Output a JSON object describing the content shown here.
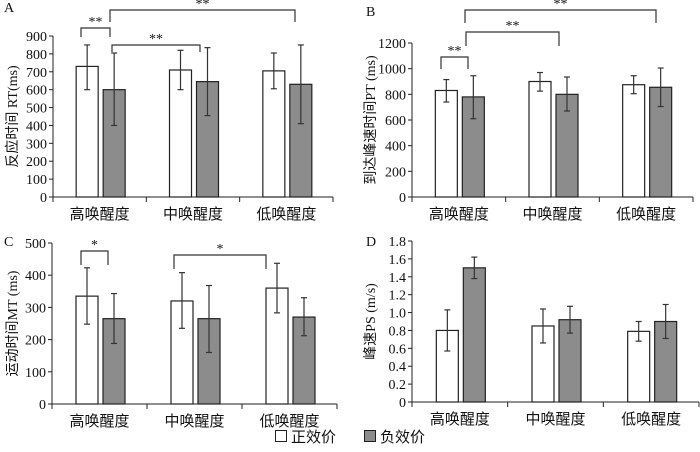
{
  "chart_data": [
    {
      "type": "bar",
      "panel_label": "A",
      "ylabel": "反应时间 RT(ms)",
      "xlabel": "",
      "ylim": [
        0,
        900
      ],
      "yticks": [
        0,
        100,
        200,
        300,
        400,
        500,
        600,
        700,
        800,
        900
      ],
      "ytick_labels": [
        "0",
        "100",
        "200",
        "300",
        "400",
        "500",
        "600",
        "700",
        "800",
        "900"
      ],
      "categories": [
        "高唤醒度",
        "中唤醒度",
        "低唤醒度"
      ],
      "series": [
        {
          "name": "正效价",
          "values": [
            730,
            710,
            705
          ],
          "err_low": [
            600,
            600,
            605
          ],
          "err_high": [
            850,
            820,
            805
          ]
        },
        {
          "name": "负效价",
          "values": [
            600,
            645,
            630
          ],
          "err_low": [
            400,
            455,
            410
          ],
          "err_high": [
            805,
            835,
            850
          ]
        }
      ],
      "annotations": [
        {
          "text": "**",
          "from": [
            0,
            0
          ],
          "to": [
            0,
            1
          ]
        },
        {
          "text": "**",
          "from": [
            0,
            1
          ],
          "to": [
            1,
            0
          ]
        },
        {
          "text": "**",
          "from": [
            0,
            1
          ],
          "to": [
            2,
            0
          ]
        }
      ],
      "grid": false
    },
    {
      "type": "bar",
      "panel_label": "B",
      "ylabel": "到达峰速时间PT (ms)",
      "xlabel": "",
      "ylim": [
        0,
        1200
      ],
      "yticks": [
        0,
        200,
        400,
        600,
        800,
        1000,
        1200
      ],
      "ytick_labels": [
        "0",
        "200",
        "400",
        "600",
        "800",
        "1000",
        "1200"
      ],
      "categories": [
        "高唤醒度",
        "中唤醒度",
        "低唤醒度"
      ],
      "series": [
        {
          "name": "正效价",
          "values": [
            830,
            900,
            875
          ],
          "err_low": [
            740,
            825,
            805
          ],
          "err_high": [
            915,
            970,
            945
          ]
        },
        {
          "name": "负效价",
          "values": [
            780,
            800,
            855
          ],
          "err_low": [
            610,
            670,
            705
          ],
          "err_high": [
            945,
            935,
            1005
          ]
        }
      ],
      "annotations": [
        {
          "text": "**",
          "from": [
            0,
            0
          ],
          "to": [
            0,
            1
          ]
        },
        {
          "text": "**",
          "from": [
            0,
            1
          ],
          "to": [
            1,
            0
          ]
        },
        {
          "text": "**",
          "from": [
            0,
            1
          ],
          "to": [
            2,
            0
          ]
        }
      ],
      "grid": false
    },
    {
      "type": "bar",
      "panel_label": "C",
      "ylabel": "运动时间MT (ms)",
      "xlabel": "",
      "ylim": [
        0,
        500
      ],
      "yticks": [
        0,
        100,
        200,
        300,
        400,
        500
      ],
      "ytick_labels": [
        "0",
        "100",
        "200",
        "300",
        "400",
        "500"
      ],
      "categories": [
        "高唤醒度",
        "中唤醒度",
        "低唤醒度"
      ],
      "series": [
        {
          "name": "正效价",
          "values": [
            335,
            320,
            360
          ],
          "err_low": [
            248,
            235,
            283
          ],
          "err_high": [
            423,
            408,
            437
          ]
        },
        {
          "name": "负效价",
          "values": [
            265,
            265,
            270
          ],
          "err_low": [
            188,
            160,
            212
          ],
          "err_high": [
            343,
            368,
            330
          ]
        }
      ],
      "annotations": [
        {
          "text": "*",
          "from": [
            0,
            0
          ],
          "to": [
            0,
            1
          ]
        },
        {
          "text": "*",
          "from": [
            1,
            0
          ],
          "to": [
            2,
            0
          ]
        }
      ],
      "grid": false
    },
    {
      "type": "bar",
      "panel_label": "D",
      "ylabel": "峰速PS (m/s)",
      "xlabel": "",
      "ylim": [
        0,
        1.8
      ],
      "yticks": [
        0,
        0.2,
        0.4,
        0.6,
        0.8,
        1.0,
        1.2,
        1.4,
        1.6,
        1.8
      ],
      "ytick_labels": [
        "0",
        "0.2",
        "0.4",
        "0.6",
        "0.8",
        "1.0",
        "1.2",
        "1.4",
        "1.6",
        "1.8"
      ],
      "categories": [
        "高唤醒度",
        "中唤醒度",
        "低唤醒度"
      ],
      "series": [
        {
          "name": "正效价",
          "values": [
            0.8,
            0.85,
            0.79
          ],
          "err_low": [
            0.57,
            0.66,
            0.68
          ],
          "err_high": [
            1.03,
            1.04,
            0.9
          ]
        },
        {
          "name": "负效价",
          "values": [
            1.5,
            0.92,
            0.9
          ],
          "err_low": [
            1.38,
            0.77,
            0.71
          ],
          "err_high": [
            1.62,
            1.07,
            1.09
          ]
        }
      ],
      "annotations": [],
      "grid": false
    }
  ],
  "legend": {
    "placement": "bottom-center",
    "items": [
      {
        "label": "正效价",
        "color": "#ffffff"
      },
      {
        "label": "负效价",
        "color": "#8c8c8c"
      }
    ]
  },
  "colors": {
    "positive_fill": "#ffffff",
    "negative_fill": "#8c8c8c",
    "axis": "#222222",
    "bracket": "#333333"
  }
}
